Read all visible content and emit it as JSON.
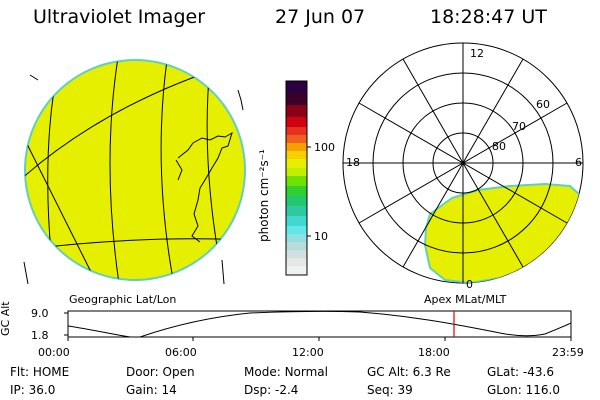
{
  "header": {
    "instrument": "Ultraviolet Imager",
    "date": "27 Jun 07",
    "time": "18:28:47 UT"
  },
  "colorbar": {
    "unit_label": "photon cm⁻²s⁻¹",
    "ticks": [
      "100",
      "10"
    ]
  },
  "geo_panel": {
    "label": "Geographic Lat/Lon"
  },
  "polar_panel": {
    "label": "Apex  MLat/MLT",
    "lat_labels": [
      "60",
      "70",
      "80"
    ],
    "mlt_labels": {
      "top": "12",
      "left": "18",
      "right": "6",
      "bottom": "0"
    }
  },
  "altitude_plot": {
    "ylabel": "GC Alt",
    "yticks": [
      "9.0",
      "1.8"
    ],
    "xticks": [
      "00:00",
      "06:00",
      "12:00",
      "18:00",
      "23:59"
    ],
    "current_time_marker": "18:28"
  },
  "status": {
    "row1": [
      {
        "key": "Flt:",
        "value": "HOME"
      },
      {
        "key": "Door:",
        "value": "Open"
      },
      {
        "key": "Mode:",
        "value": "Normal"
      },
      {
        "key": "GC Alt:",
        "value": "6.3 Re"
      },
      {
        "key": "GLat:",
        "value": "-43.6"
      }
    ],
    "row2": [
      {
        "key": "IP:",
        "value": "36.0"
      },
      {
        "key": "Gain:",
        "value": "14"
      },
      {
        "key": "Dsp:",
        "value": "-2.4"
      },
      {
        "key": "Seq:",
        "value": "39"
      },
      {
        "key": "GLon:",
        "value": "116.0"
      }
    ]
  },
  "colors": {
    "fill": "#e6ef00",
    "rim": "#5fd0c0",
    "marker": "#e00000"
  }
}
